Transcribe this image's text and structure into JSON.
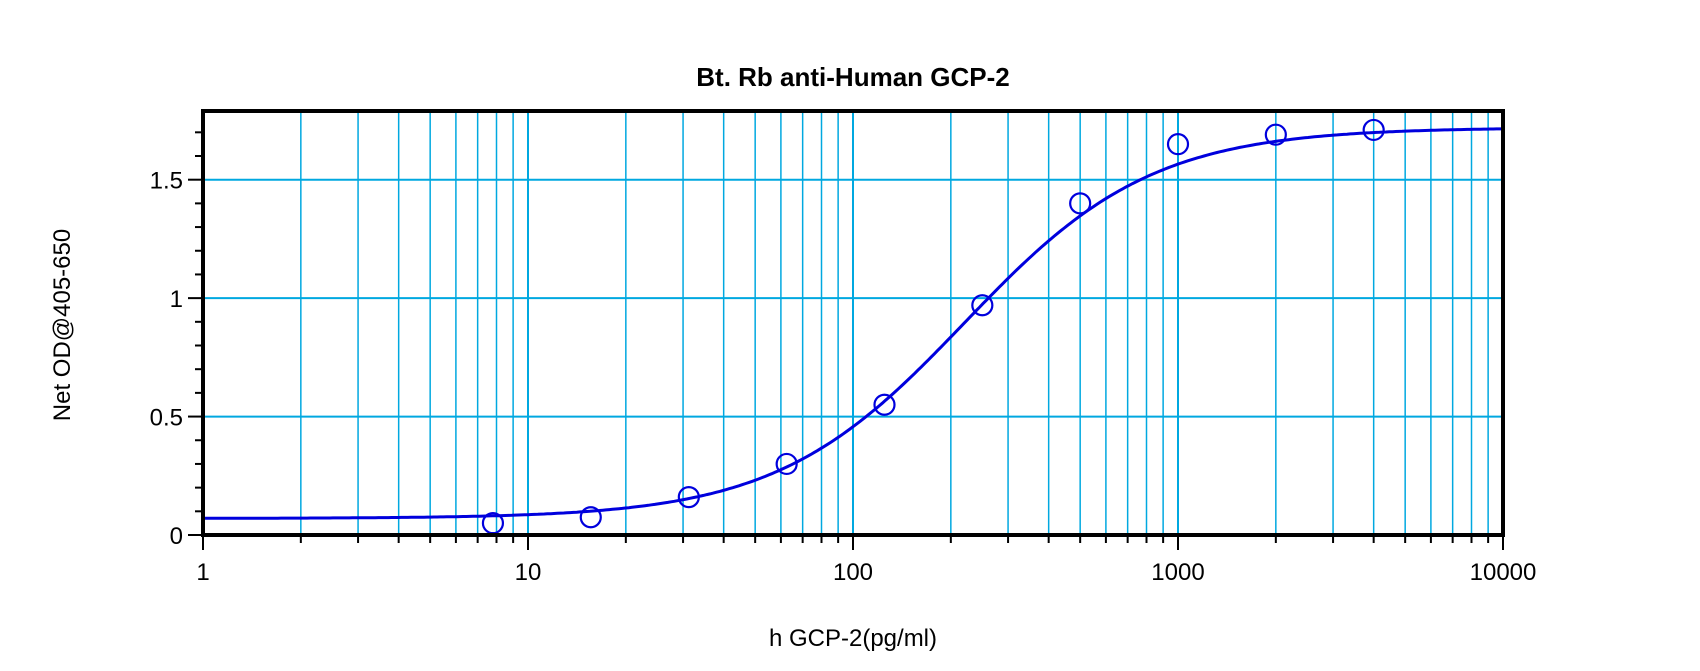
{
  "chart_data": {
    "type": "scatter",
    "title": "Bt. Rb anti-Human GCP-2",
    "xlabel": "h GCP-2(pg/ml)",
    "ylabel": "Net OD@405-650",
    "xscale": "log",
    "xlim": [
      1,
      10000
    ],
    "ylim": [
      0,
      1.79
    ],
    "xticks": [
      1,
      10,
      100,
      1000,
      10000
    ],
    "xtick_labels": [
      "1",
      "10",
      "100",
      "1000",
      "10000"
    ],
    "yticks": [
      0,
      0.5,
      1,
      1.5
    ],
    "ytick_labels": [
      "0",
      "0.5",
      "1",
      "1.5"
    ],
    "grid": true,
    "colors": {
      "series": "#0000dd",
      "grid": "#00a8e0",
      "axis": "#000000"
    },
    "series": [
      {
        "marker": "open-circle",
        "x": [
          7.8,
          15.6,
          31.25,
          62.5,
          125,
          250,
          500,
          1000,
          2000,
          4000
        ],
        "y": [
          0.05,
          0.075,
          0.16,
          0.3,
          0.55,
          0.97,
          1.4,
          1.65,
          1.69,
          1.71
        ]
      }
    ],
    "fit_curve": {
      "model": "4PL",
      "bottom": 0.07,
      "top": 1.72,
      "ec50": 220,
      "hill": 1.5
    }
  }
}
